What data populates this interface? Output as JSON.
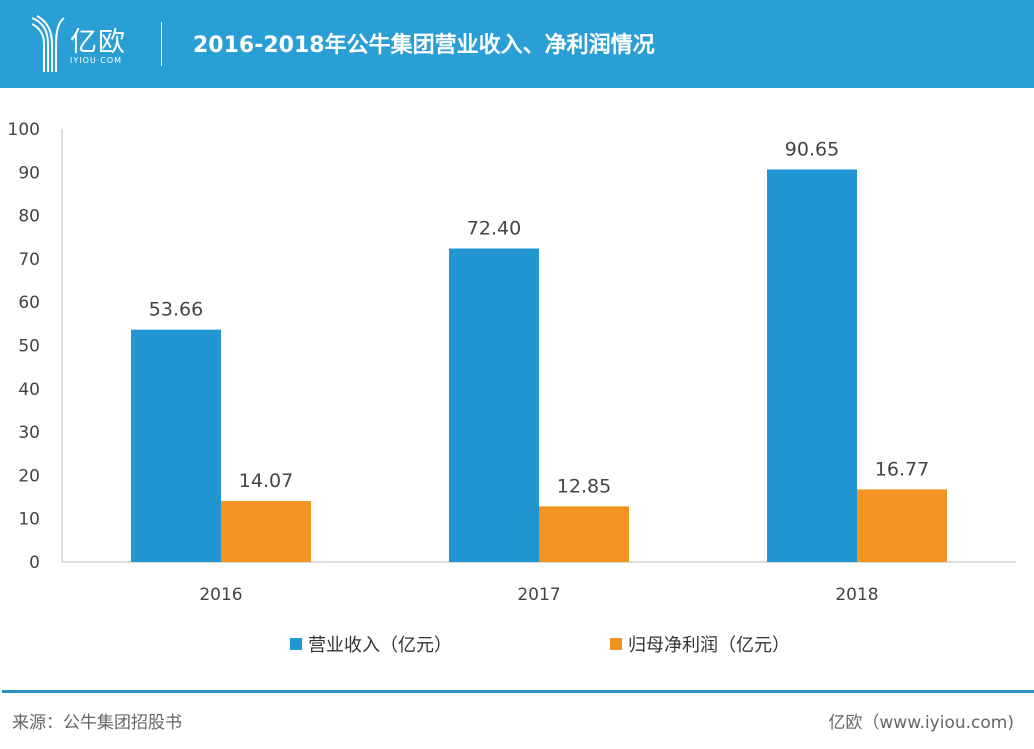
{
  "header": {
    "logo_cn": "亿欧",
    "logo_en": "IYIOU·COM",
    "title": "2016-2018年公牛集团营业收入、净利润情况"
  },
  "chart_data": {
    "type": "bar",
    "title": "2016-2018年公牛集团营业收入、净利润情况",
    "categories": [
      "2016",
      "2017",
      "2018"
    ],
    "series": [
      {
        "name": "营业收入（亿元）",
        "values": [
          53.66,
          72.4,
          90.65
        ],
        "labels": [
          "53.66",
          "72.40",
          "90.65"
        ],
        "color": "#2196d3"
      },
      {
        "name": "归母净利润（亿元）",
        "values": [
          14.07,
          12.85,
          16.77
        ],
        "labels": [
          "14.07",
          "12.85",
          "16.77"
        ],
        "color": "#f39422"
      }
    ],
    "ylim": [
      0,
      100
    ],
    "yticks": [
      "0",
      "10",
      "20",
      "30",
      "40",
      "50",
      "60",
      "70",
      "80",
      "90",
      "100"
    ],
    "grid": false,
    "legend": "bottom"
  },
  "footer": {
    "source": "来源：公牛集团招股书",
    "site": "亿欧（www.iyiou.com)"
  }
}
